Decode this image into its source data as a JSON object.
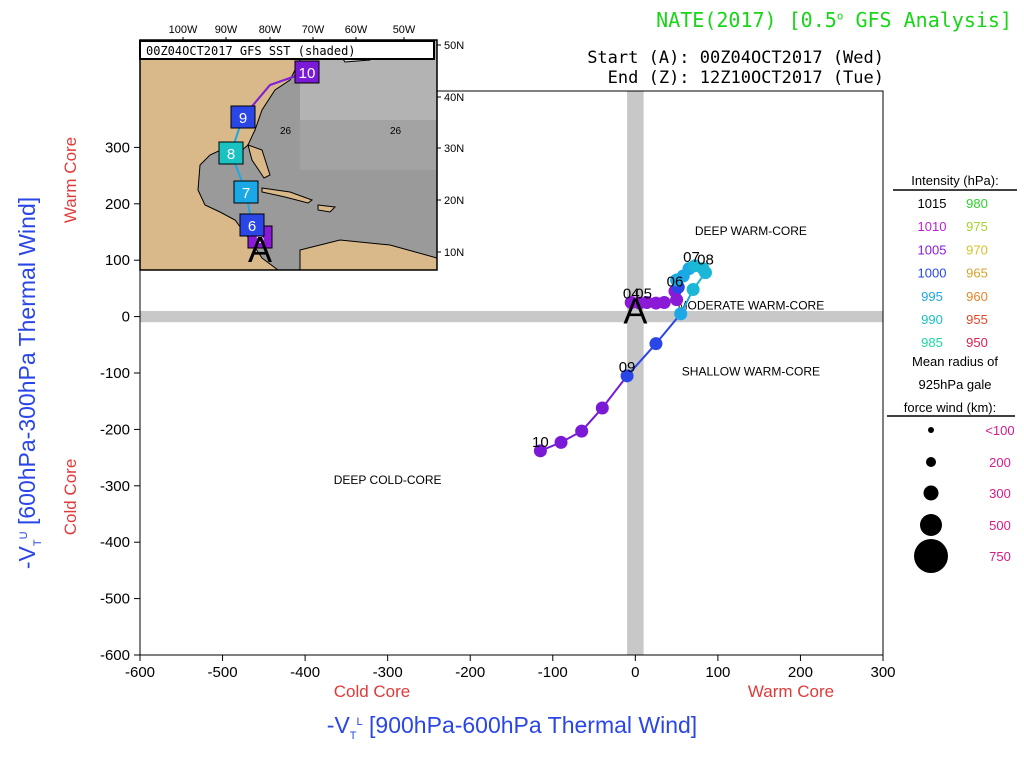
{
  "header": {
    "title_main": "NATE(2017) [0.5",
    "title_deg": "o",
    "title_tail": " GFS Analysis]",
    "start_text": "Start (A): 00Z04OCT2017 (Wed)",
    "end_text": "End (Z): 12Z10OCT2017 (Tue)",
    "title_color": "#17d617"
  },
  "chart_data": {
    "type": "scatter",
    "x_axis": {
      "min": -600,
      "max": 300,
      "ticks": [
        -600,
        -500,
        -400,
        -300,
        -200,
        -100,
        0,
        100,
        200,
        300
      ],
      "label_main": "-V",
      "label_sub": "T",
      "label_sup": "L",
      "label_rest": " [900hPa-600hPa Thermal Wind]",
      "left_note": "Cold Core",
      "right_note": "Warm Core"
    },
    "y_axis": {
      "min": -600,
      "max": 400,
      "ticks": [
        -600,
        -500,
        -400,
        -300,
        -200,
        -100,
        0,
        100,
        200,
        300
      ],
      "label_main": "-V",
      "label_sub": "T",
      "label_sup": "U",
      "label_rest": " [600hPa-300hPa Thermal Wind]",
      "upper_note": "Warm Core",
      "lower_note": "Cold Core"
    },
    "regions": {
      "deep_warm": "DEEP WARM-CORE",
      "moderate_warm": "MODERATE WARM-CORE",
      "shallow_warm": "SHALLOW WARM-CORE",
      "deep_cold": "DEEP COLD-CORE"
    },
    "start_marker": "A",
    "track": [
      {
        "x": -5,
        "y": 25,
        "color": "#8a1ad6"
      },
      {
        "x": 5,
        "y": 24,
        "color": "#8a1ad6"
      },
      {
        "x": 14,
        "y": 25,
        "color": "#8a1ad6"
      },
      {
        "x": 25,
        "y": 24,
        "color": "#8a1ad6"
      },
      {
        "x": 35,
        "y": 25,
        "color": "#8a1ad6"
      },
      {
        "x": 50,
        "y": 30,
        "color": "#8a1ad6"
      },
      {
        "x": 48,
        "y": 45,
        "color": "#8a1ad6"
      },
      {
        "x": 52,
        "y": 52,
        "color": "#2a46e6"
      },
      {
        "x": 50,
        "y": 65,
        "color": "#1aa8e6"
      },
      {
        "x": 58,
        "y": 72,
        "color": "#1aa8e6"
      },
      {
        "x": 65,
        "y": 85,
        "color": "#1aa8e6"
      },
      {
        "x": 72,
        "y": 90,
        "color": "#1ab8d6"
      },
      {
        "x": 82,
        "y": 85,
        "color": "#1ab8d6"
      },
      {
        "x": 85,
        "y": 78,
        "color": "#1ab8d6"
      },
      {
        "x": 70,
        "y": 48,
        "color": "#1ab8d6"
      },
      {
        "x": 55,
        "y": 5,
        "color": "#1aa8e6"
      },
      {
        "x": 25,
        "y": -48,
        "color": "#2a46e6"
      },
      {
        "x": -10,
        "y": -105,
        "color": "#2a46e6"
      },
      {
        "x": -40,
        "y": -162,
        "color": "#7a1ad6"
      },
      {
        "x": -65,
        "y": -203,
        "color": "#7a1ad6"
      },
      {
        "x": -90,
        "y": -223,
        "color": "#7a1ad6"
      },
      {
        "x": -115,
        "y": -238,
        "color": "#7a1ad6"
      }
    ],
    "day_labels": [
      {
        "text": "04",
        "x": -5,
        "y": 25
      },
      {
        "text": "05",
        "x": 10,
        "y": 25
      },
      {
        "text": "06",
        "x": 48,
        "y": 46
      },
      {
        "text": "07",
        "x": 68,
        "y": 90
      },
      {
        "text": "08",
        "x": 85,
        "y": 85
      },
      {
        "text": "09",
        "x": -10,
        "y": -105
      },
      {
        "text": "10",
        "x": -115,
        "y": -238
      }
    ],
    "legend": {
      "intensity_title": "Intensity (hPa):",
      "intensity": [
        {
          "left": "1015",
          "left_color": "#000000",
          "right": "980",
          "right_color": "#2ad62a"
        },
        {
          "left": "1010",
          "left_color": "#c21ad6",
          "right": "975",
          "right_color": "#a2d62a"
        },
        {
          "left": "1005",
          "left_color": "#8a1ad6",
          "right": "970",
          "right_color": "#d6c22a"
        },
        {
          "left": "1000",
          "left_color": "#2a46e6",
          "right": "965",
          "right_color": "#d6a22a"
        },
        {
          "left": "995",
          "left_color": "#1aa8e6",
          "right": "960",
          "right_color": "#e6862a"
        },
        {
          "left": "990",
          "left_color": "#1ac2c2",
          "right": "955",
          "right_color": "#e6462a"
        },
        {
          "left": "985",
          "left_color": "#1ad6a2",
          "right": "950",
          "right_color": "#e61a4a"
        }
      ],
      "radius_title_1": "Mean radius of",
      "radius_title_2": "925hPa gale",
      "radius_title_3": "force wind (km):",
      "radius": [
        {
          "label": "<100",
          "size": 1
        },
        {
          "label": "200",
          "size": 2
        },
        {
          "label": "300",
          "size": 3
        },
        {
          "label": "500",
          "size": 4
        },
        {
          "label": "750",
          "size": 5
        }
      ],
      "radius_label_color": "#d61a8a"
    },
    "inset": {
      "title": "00Z04OCT2017 GFS SST (shaded)",
      "lon_labels": [
        "100W",
        "90W",
        "80W",
        "70W",
        "60W",
        "50W"
      ],
      "lat_labels": [
        "50N",
        "40N",
        "30N",
        "20N",
        "10N"
      ],
      "sst_label": "26",
      "start_marker": "A",
      "track_points": [
        {
          "day": "5",
          "color": "#8a1ad6"
        },
        {
          "day": "6",
          "color": "#2a46e6"
        },
        {
          "day": "7",
          "color": "#1aa8e6"
        },
        {
          "day": "8",
          "color": "#1ac2c2"
        },
        {
          "day": "9",
          "color": "#2a46e6"
        },
        {
          "day": "10",
          "color": "#7a1ad6"
        }
      ],
      "land_color": "#d9b98a",
      "ocean_color": "#9a9a9a"
    },
    "colors": {
      "axis_label": "#2a46e6",
      "core_note": "#e03a3a",
      "zero_band": "#c8c8c8"
    }
  }
}
